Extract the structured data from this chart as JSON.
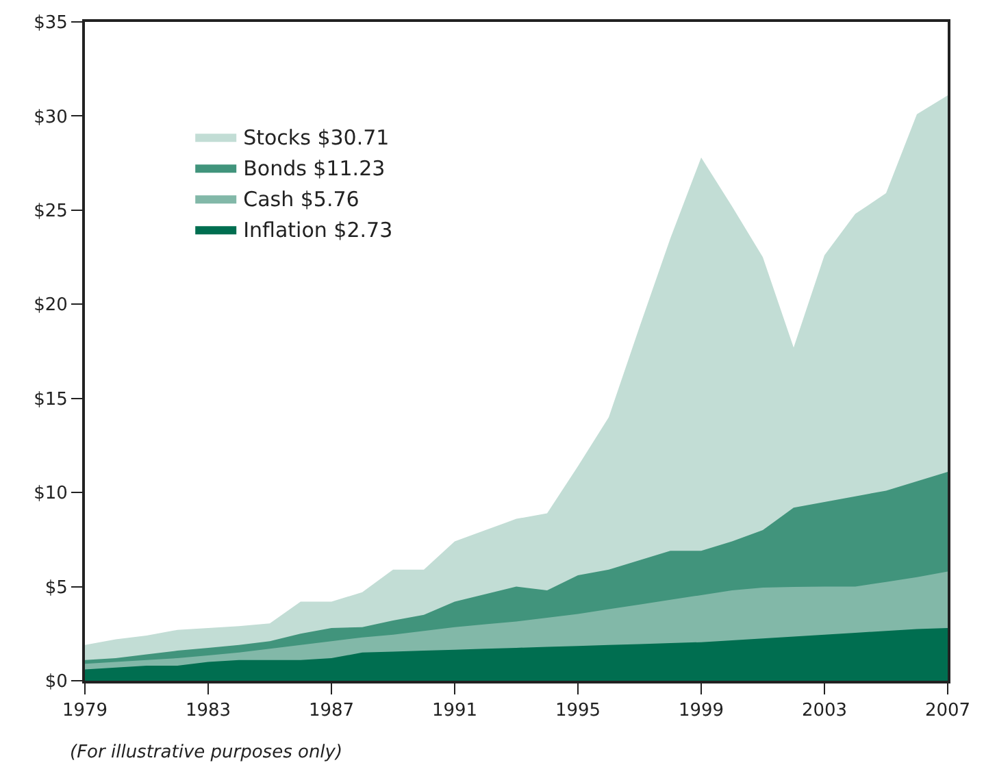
{
  "chart_data": {
    "type": "area",
    "x": [
      1979,
      1980,
      1981,
      1982,
      1983,
      1984,
      1985,
      1986,
      1987,
      1988,
      1989,
      1990,
      1991,
      1992,
      1993,
      1994,
      1995,
      1996,
      1997,
      1998,
      1999,
      2000,
      2001,
      2002,
      2003,
      2004,
      2005,
      2006,
      2007
    ],
    "series": [
      {
        "name": "Stocks $30.71",
        "color": "#c2ddd5",
        "values": [
          1.9,
          2.2,
          2.4,
          2.7,
          2.8,
          2.9,
          3.05,
          4.2,
          4.2,
          4.7,
          5.9,
          5.9,
          7.4,
          8.0,
          8.6,
          8.9,
          11.4,
          14.0,
          18.8,
          23.5,
          27.8,
          25.2,
          22.5,
          17.7,
          22.6,
          24.8,
          25.9,
          30.1,
          31.1
        ]
      },
      {
        "name": "Bonds $11.23",
        "color": "#41947c",
        "values": [
          1.1,
          1.2,
          1.4,
          1.6,
          1.75,
          1.9,
          2.1,
          2.5,
          2.8,
          2.85,
          3.2,
          3.5,
          4.2,
          4.6,
          5.0,
          4.8,
          5.6,
          5.9,
          6.4,
          6.9,
          6.9,
          7.4,
          8.0,
          9.2,
          9.5,
          9.8,
          10.1,
          10.6,
          11.1
        ]
      },
      {
        "name": "Cash $5.76",
        "color": "#82b8a8",
        "values": [
          0.9,
          1.0,
          1.1,
          1.2,
          1.35,
          1.5,
          1.7,
          1.9,
          2.1,
          2.3,
          2.45,
          2.65,
          2.85,
          3.0,
          3.15,
          3.35,
          3.55,
          3.8,
          4.05,
          4.3,
          4.55,
          4.8,
          4.95,
          4.98,
          5.0,
          5.0,
          5.25,
          5.5,
          5.8
        ]
      },
      {
        "name": "Inflation $2.73",
        "color": "#006e50",
        "values": [
          0.6,
          0.7,
          0.8,
          0.8,
          1.0,
          1.1,
          1.1,
          1.1,
          1.2,
          1.5,
          1.55,
          1.6,
          1.65,
          1.7,
          1.75,
          1.8,
          1.85,
          1.9,
          1.95,
          2.0,
          2.05,
          2.15,
          2.25,
          2.35,
          2.45,
          2.55,
          2.65,
          2.75,
          2.8
        ]
      }
    ],
    "xlim": [
      1979,
      2007
    ],
    "xticks": [
      1979,
      1983,
      1987,
      1991,
      1995,
      1999,
      2003,
      2007
    ],
    "ylim": [
      0,
      35
    ],
    "yticks": [
      {
        "value": 0,
        "label": "$0"
      },
      {
        "value": 5,
        "label": "$5"
      },
      {
        "value": 10,
        "label": "$10"
      },
      {
        "value": 15,
        "label": "$15"
      },
      {
        "value": 20,
        "label": "$20"
      },
      {
        "value": 25,
        "label": "$25"
      },
      {
        "value": 30,
        "label": "$30"
      },
      {
        "value": 35,
        "label": "$35"
      }
    ],
    "grid": false,
    "legend": "top left",
    "marker": "none",
    "annotations": [
      "(For illustrative purposes only)"
    ]
  }
}
